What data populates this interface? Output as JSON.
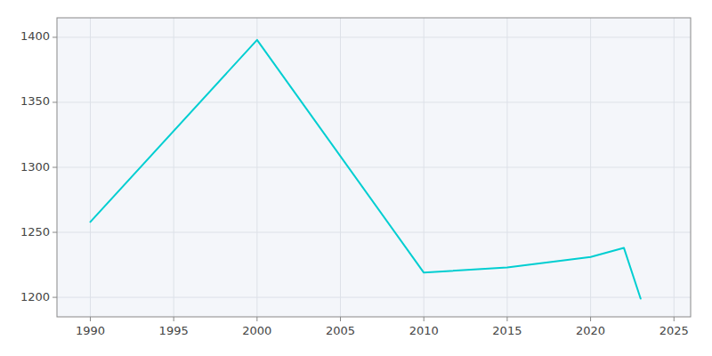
{
  "chart_data": {
    "type": "line",
    "x": [
      1990,
      2000,
      2010,
      2015,
      2020,
      2022,
      2023
    ],
    "values": [
      1258,
      1398,
      1219,
      1223,
      1231,
      1238,
      1199
    ],
    "color": "#00CED1",
    "xlim": [
      1988,
      2026
    ],
    "ylim": [
      1185,
      1415
    ],
    "xticks": [
      1990,
      1995,
      2000,
      2005,
      2010,
      2015,
      2020,
      2025
    ],
    "yticks": [
      1200,
      1250,
      1300,
      1350,
      1400
    ],
    "grid": true
  }
}
